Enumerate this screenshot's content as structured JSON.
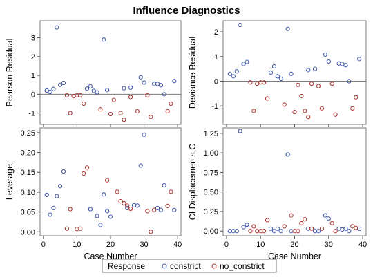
{
  "title": "Influence Diagnostics",
  "legend": {
    "title": "Response",
    "placement": "bottom",
    "items": [
      {
        "label": "constrict",
        "color": "#3a52a8"
      },
      {
        "label": "no_constrict",
        "color": "#a8312d"
      }
    ]
  },
  "chart_data": [
    {
      "type": "scatter",
      "xlabel": "",
      "ylabel": "Pearson Residual",
      "xlim": [
        -1,
        41
      ],
      "ylim": [
        -1.6,
        3.9
      ],
      "xticks": [
        0,
        10,
        20,
        30,
        40
      ],
      "xtick_labels": [
        "",
        "",
        "",
        "",
        ""
      ],
      "yticks": [
        -1,
        0,
        1,
        2,
        3
      ],
      "yticklabels": [
        "-1",
        "0",
        "1",
        "2",
        "3"
      ],
      "reference_line": 0,
      "series": [
        {
          "name": "constrict",
          "x": [
            1,
            2,
            3,
            4,
            5,
            6,
            13,
            14,
            15,
            16,
            18,
            19,
            24,
            26,
            29,
            30,
            33,
            34,
            35,
            36,
            39
          ],
          "y": [
            0.2,
            0.12,
            0.28,
            3.55,
            0.5,
            0.6,
            0.3,
            0.42,
            0.18,
            0.1,
            2.9,
            0.22,
            0.32,
            0.35,
            0.9,
            0.62,
            0.55,
            0.55,
            0.48,
            0.0,
            0.7
          ]
        },
        {
          "name": "no_constrict",
          "x": [
            7,
            8,
            9,
            10,
            11,
            12,
            17,
            20,
            21,
            23,
            24,
            26,
            28,
            31,
            32,
            37,
            38
          ],
          "y": [
            -0.05,
            -1.0,
            -0.1,
            -0.05,
            -0.05,
            -0.5,
            -0.8,
            -1.05,
            -0.3,
            -1.0,
            -1.35,
            -0.15,
            -0.9,
            -0.05,
            -1.2,
            -0.9,
            -0.5
          ]
        }
      ]
    },
    {
      "type": "scatter",
      "xlabel": "",
      "ylabel": "Deviance Residual",
      "xlim": [
        -1,
        41
      ],
      "ylim": [
        -1.75,
        2.45
      ],
      "xticks": [
        0,
        10,
        20,
        30,
        40
      ],
      "xtick_labels": [
        "",
        "",
        "",
        "",
        ""
      ],
      "yticks": [
        -1,
        0,
        1,
        2
      ],
      "yticklabels": [
        "-1",
        "0",
        "1",
        "2"
      ],
      "reference_line": 0,
      "series": [
        {
          "name": "constrict",
          "x": [
            1,
            2,
            3,
            4,
            5,
            6,
            13,
            14,
            15,
            16,
            18,
            19,
            24,
            26,
            29,
            30,
            33,
            34,
            35,
            36,
            39
          ],
          "y": [
            0.3,
            0.2,
            0.4,
            2.28,
            0.7,
            0.78,
            0.35,
            0.6,
            0.2,
            0.1,
            2.12,
            0.3,
            0.45,
            0.5,
            1.08,
            0.8,
            0.72,
            0.7,
            0.65,
            0.0,
            0.9
          ]
        },
        {
          "name": "no_constrict",
          "x": [
            7,
            8,
            9,
            10,
            11,
            12,
            17,
            20,
            21,
            22,
            23,
            24,
            25,
            27,
            28,
            31,
            32,
            37,
            38
          ],
          "y": [
            -0.05,
            -1.2,
            -0.1,
            -0.05,
            -0.05,
            -0.7,
            -0.95,
            -1.25,
            -0.15,
            -0.6,
            -1.2,
            -1.45,
            -0.1,
            -0.2,
            -1.1,
            -0.1,
            -1.35,
            -1.1,
            -0.65
          ]
        }
      ]
    },
    {
      "type": "scatter",
      "xlabel": "Case Number",
      "ylabel": "Leverage",
      "xlim": [
        -1,
        41
      ],
      "ylim": [
        -0.01,
        0.262
      ],
      "xticks": [
        0,
        10,
        20,
        30,
        40
      ],
      "xtick_labels": [
        "0",
        "10",
        "20",
        "30",
        "40"
      ],
      "yticks": [
        0.0,
        0.05,
        0.1,
        0.15,
        0.2,
        0.25
      ],
      "yticklabels": [
        "0.00",
        "0.05",
        "0.10",
        "0.15",
        "0.20",
        "0.25"
      ],
      "series": [
        {
          "name": "constrict",
          "x": [
            1,
            2,
            3,
            4,
            5,
            6,
            14,
            16,
            17,
            18,
            19,
            20,
            25,
            27,
            28,
            29,
            30,
            34,
            35,
            36,
            39
          ],
          "y": [
            0.093,
            0.043,
            0.06,
            0.09,
            0.115,
            0.152,
            0.057,
            0.04,
            0.017,
            0.094,
            0.052,
            0.038,
            0.06,
            0.067,
            0.066,
            0.167,
            0.245,
            0.06,
            0.055,
            0.117,
            0.055
          ]
        },
        {
          "name": "no_constrict",
          "x": [
            7,
            8,
            10,
            11,
            12,
            13,
            19,
            22,
            23,
            24,
            25,
            26,
            31,
            32,
            33,
            37,
            38
          ],
          "y": [
            0.008,
            0.057,
            0.007,
            0.008,
            0.147,
            0.162,
            0.13,
            0.101,
            0.077,
            0.072,
            0.066,
            0.058,
            0.052,
            0.0,
            0.055,
            0.065,
            0.101
          ]
        }
      ]
    },
    {
      "type": "scatter",
      "xlabel": "Case Number",
      "ylabel": "CI Displacements C",
      "xlim": [
        -1,
        41
      ],
      "ylim": [
        -0.06,
        1.32
      ],
      "xticks": [
        0,
        10,
        20,
        30,
        40
      ],
      "xtick_labels": [
        "0",
        "10",
        "20",
        "30",
        "40"
      ],
      "yticks": [
        0.0,
        0.25,
        0.5,
        0.75,
        1.0,
        1.25
      ],
      "yticklabels": [
        "0.00",
        "0.25",
        "0.50",
        "0.75",
        "1.00",
        "1.25"
      ],
      "series": [
        {
          "name": "constrict",
          "x": [
            1,
            2,
            3,
            4,
            5,
            6,
            13,
            14,
            15,
            16,
            18,
            19,
            24,
            26,
            27,
            29,
            30,
            33,
            34,
            35,
            36,
            39
          ],
          "y": [
            0.0,
            0.0,
            0.0,
            1.28,
            0.05,
            0.08,
            0.03,
            0.0,
            0.03,
            0.0,
            0.98,
            0.0,
            0.03,
            0.0,
            0.0,
            0.2,
            0.16,
            0.03,
            0.02,
            0.03,
            0.0,
            0.03
          ]
        },
        {
          "name": "no_constrict",
          "x": [
            7,
            8,
            9,
            10,
            11,
            12,
            17,
            19,
            20,
            21,
            22,
            23,
            25,
            28,
            31,
            32,
            37,
            38
          ],
          "y": [
            0.0,
            0.06,
            0.0,
            0.0,
            0.0,
            0.14,
            0.06,
            0.2,
            0.0,
            0.0,
            0.1,
            0.15,
            0.03,
            0.03,
            0.1,
            0.0,
            0.06,
            0.04
          ]
        }
      ]
    }
  ]
}
